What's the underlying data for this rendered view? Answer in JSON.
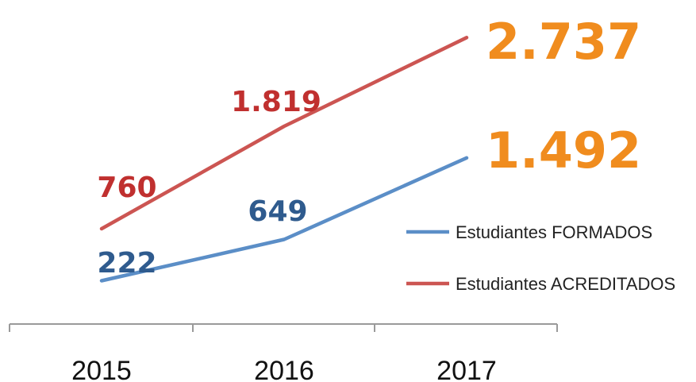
{
  "chart_data": {
    "type": "line",
    "x": [
      "2015",
      "2016",
      "2017"
    ],
    "series": [
      {
        "name": "Estudiantes ACREDITADOS",
        "color": "#cc5552",
        "values": [
          760,
          1819,
          2737
        ],
        "data_labels": [
          "760",
          "1.819",
          "2.737"
        ],
        "label_colors": [
          "#c0302f",
          "#c0302f",
          "#f08c1e"
        ]
      },
      {
        "name": "Estudiantes FORMADOS",
        "color": "#5b8ec7",
        "values": [
          222,
          649,
          1492
        ],
        "data_labels": [
          "222",
          "649",
          "1.492"
        ],
        "label_colors": [
          "#2f5b8e",
          "#2f5b8e",
          "#f08c1e"
        ]
      }
    ],
    "legend": {
      "position": "right",
      "items": [
        "Estudiantes FORMADOS",
        "Estudiantes ACREDITADOS"
      ]
    },
    "ylim": [
      0,
      3000
    ],
    "grid": false,
    "axis_color": "#9a9a9a"
  }
}
